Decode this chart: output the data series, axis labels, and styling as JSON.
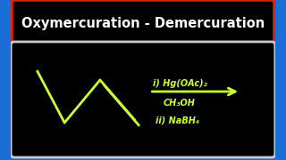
{
  "bg_color": "#1b6ed6",
  "title_box_color": "#000000",
  "title_border_color": "#dd2200",
  "title_text": "Oxymercuration - Demercuration",
  "title_text_color": "#ffffff",
  "reaction_box_color": "#000000",
  "reaction_box_border": "#cccccc",
  "chem_color": "#ccff33",
  "arrow_color": "#ccff33",
  "line1": "i) Hg(OAc)₂",
  "line2": "CH₃OH",
  "line3": "ii) NaBH₄",
  "title_fontsize": 10.5,
  "chem_fontsize": 7.0
}
